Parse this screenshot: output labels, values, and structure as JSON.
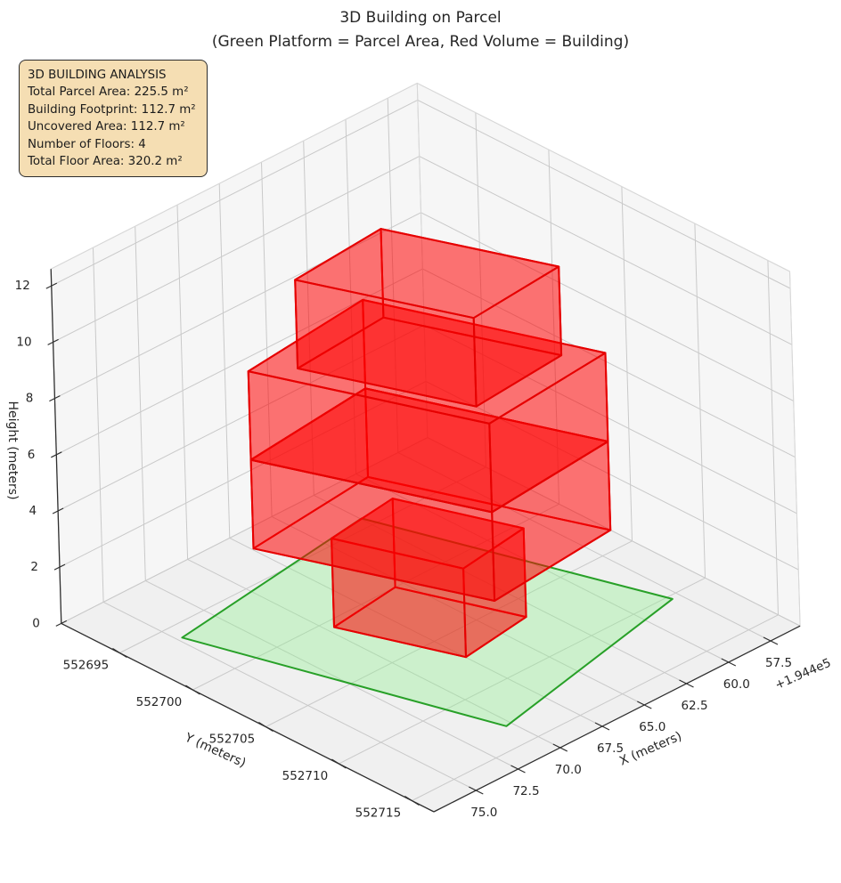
{
  "chart_data": {
    "type": "scene3d",
    "title": "3D Building on Parcel",
    "subtitle": "(Green Platform = Parcel Area, Red Volume = Building)",
    "annotation": {
      "lines": [
        "3D BUILDING ANALYSIS",
        "Total Parcel Area: 225.5 m²",
        "Building Footprint: 112.7 m²",
        "Uncovered Area: 112.7 m²",
        "Number of Floors: 4",
        "Total Floor Area: 320.2 m²"
      ]
    },
    "axes": {
      "x": {
        "label": "X (meters)",
        "offset_text": "+1.944e5",
        "range": [
          55.75,
          77.5
        ],
        "ticks": [
          57.5,
          60.0,
          62.5,
          65.0,
          67.5,
          70.0,
          72.5,
          75.0
        ],
        "tick_labels": [
          "57.5",
          "60.0",
          "62.5",
          "65.0",
          "67.5",
          "70.0",
          "72.5",
          "75.0"
        ]
      },
      "y": {
        "label": "Y (meters)",
        "range": [
          552691.0,
          552716.5
        ],
        "ticks": [
          552695,
          552700,
          552705,
          552710,
          552715
        ],
        "tick_labels": [
          "552695",
          "552700",
          "552705",
          "552710",
          "552715"
        ]
      },
      "z": {
        "label": "Height (meters)",
        "range": [
          0,
          12.6
        ],
        "ticks": [
          0,
          2,
          4,
          6,
          8,
          10,
          12
        ],
        "tick_labels": [
          "0",
          "2",
          "4",
          "6",
          "8",
          "10",
          "12"
        ]
      }
    },
    "parcel": {
      "z": 0,
      "fill": "#90ee90",
      "fill_opacity": 0.38,
      "stroke": "#28a028",
      "stroke_width": 2,
      "polygon": [
        [
          74.75,
          552696.1
        ],
        [
          70.33,
          552713.2
        ],
        [
          57.95,
          552710.3
        ],
        [
          62.45,
          552694.2
        ]
      ]
    },
    "building": {
      "fill": "#ff0000",
      "fill_opacity": 0.32,
      "stroke": "#e60000",
      "stroke_width": 2,
      "floors": [
        {
          "name": "floor-1",
          "z0": 0,
          "z1": 3.15,
          "footprint": [
            [
              69.63,
              552700.6
            ],
            [
              67.48,
              552707.15
            ],
            [
              63.34,
              552706.5
            ],
            [
              65.48,
              552700.0
            ]
          ]
        },
        {
          "name": "floor-2",
          "z0": 3.15,
          "z1": 6.3,
          "footprint": [
            [
              72.53,
              552698.6
            ],
            [
              68.45,
              552710.4
            ],
            [
              60.87,
              552709.6
            ],
            [
              64.95,
              552697.7
            ]
          ]
        },
        {
          "name": "floor-3",
          "z0": 6.3,
          "z1": 9.45,
          "footprint": [
            [
              72.53,
              552698.6
            ],
            [
              68.45,
              552710.4
            ],
            [
              60.87,
              552709.6
            ],
            [
              64.95,
              552697.7
            ]
          ]
        },
        {
          "name": "floor-4",
          "z0": 9.45,
          "z1": 12.6,
          "footprint": [
            [
              70.9,
              552700.1
            ],
            [
              67.84,
              552708.8
            ],
            [
              62.31,
              552708.25
            ],
            [
              65.37,
              552699.6
            ]
          ]
        }
      ]
    },
    "style": {
      "wall": "#f6f6f6",
      "floor_pane": "#f0f0f0",
      "grid": "#c9c9c9",
      "pane_edge": "#d8d8d8",
      "axis_line": "#2f2f2f",
      "text": "#262626"
    }
  }
}
